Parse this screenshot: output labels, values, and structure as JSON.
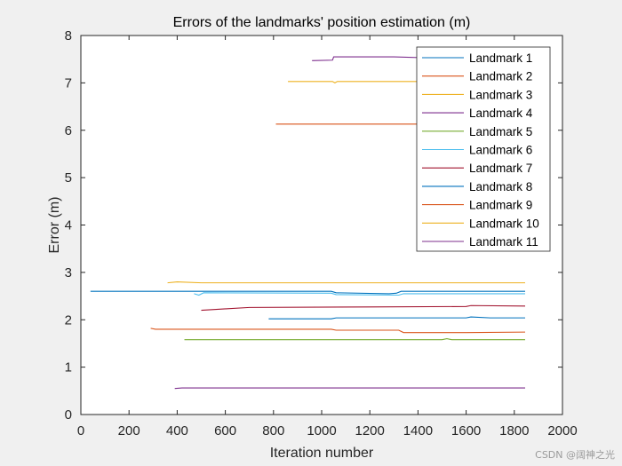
{
  "chart_data": {
    "type": "line",
    "title": "Errors of the landmarks' position estimation (m)",
    "xlabel": "Iteration number",
    "ylabel": "Error (m)",
    "xlim": [
      0,
      2000
    ],
    "ylim": [
      0,
      8
    ],
    "xticks": [
      0,
      200,
      400,
      600,
      800,
      1000,
      1200,
      1400,
      1600,
      1800,
      2000
    ],
    "yticks": [
      0,
      1,
      2,
      3,
      4,
      5,
      6,
      7,
      8
    ],
    "grid": false,
    "legend_position": "top-right",
    "series": [
      {
        "name": "Landmark 1",
        "color": "#0072BD",
        "points": [
          [
            40,
            2.6
          ],
          [
            1040,
            2.6
          ],
          [
            1060,
            2.57
          ],
          [
            1280,
            2.55
          ],
          [
            1310,
            2.56
          ],
          [
            1330,
            2.6
          ],
          [
            1845,
            2.6
          ]
        ]
      },
      {
        "name": "Landmark 2",
        "color": "#D95319",
        "points": [
          [
            810,
            6.13
          ],
          [
            1845,
            6.13
          ]
        ]
      },
      {
        "name": "Landmark 3",
        "color": "#EDB120",
        "points": [
          [
            860,
            7.03
          ],
          [
            1045,
            7.03
          ],
          [
            1055,
            7.0
          ],
          [
            1065,
            7.03
          ],
          [
            1845,
            7.03
          ]
        ]
      },
      {
        "name": "Landmark 4",
        "color": "#7E2F8E",
        "points": [
          [
            960,
            7.47
          ],
          [
            1045,
            7.48
          ],
          [
            1050,
            7.55
          ],
          [
            1300,
            7.55
          ],
          [
            1500,
            7.52
          ],
          [
            1845,
            7.52
          ]
        ]
      },
      {
        "name": "Landmark 5",
        "color": "#77AC30",
        "points": [
          [
            430,
            1.58
          ],
          [
            1500,
            1.58
          ],
          [
            1520,
            1.6
          ],
          [
            1540,
            1.58
          ],
          [
            1845,
            1.58
          ]
        ]
      },
      {
        "name": "Landmark 6",
        "color": "#4DBEEE",
        "points": [
          [
            470,
            2.55
          ],
          [
            490,
            2.52
          ],
          [
            510,
            2.57
          ],
          [
            1040,
            2.56
          ],
          [
            1060,
            2.53
          ],
          [
            1320,
            2.52
          ],
          [
            1340,
            2.55
          ],
          [
            1845,
            2.55
          ]
        ]
      },
      {
        "name": "Landmark 7",
        "color": "#A2142F",
        "points": [
          [
            500,
            2.2
          ],
          [
            600,
            2.23
          ],
          [
            700,
            2.26
          ],
          [
            1200,
            2.27
          ],
          [
            1600,
            2.28
          ],
          [
            1620,
            2.3
          ],
          [
            1845,
            2.29
          ]
        ]
      },
      {
        "name": "Landmark 8",
        "color": "#0072BD",
        "points": [
          [
            780,
            2.02
          ],
          [
            1040,
            2.02
          ],
          [
            1060,
            2.04
          ],
          [
            1600,
            2.04
          ],
          [
            1620,
            2.06
          ],
          [
            1700,
            2.04
          ],
          [
            1845,
            2.04
          ]
        ]
      },
      {
        "name": "Landmark 9",
        "color": "#D95319",
        "points": [
          [
            290,
            1.82
          ],
          [
            310,
            1.8
          ],
          [
            1040,
            1.8
          ],
          [
            1060,
            1.78
          ],
          [
            1320,
            1.78
          ],
          [
            1340,
            1.73
          ],
          [
            1600,
            1.73
          ],
          [
            1845,
            1.74
          ]
        ]
      },
      {
        "name": "Landmark 10",
        "color": "#EDB120",
        "points": [
          [
            360,
            2.78
          ],
          [
            400,
            2.8
          ],
          [
            500,
            2.78
          ],
          [
            1845,
            2.78
          ]
        ]
      },
      {
        "name": "Landmark 11",
        "color": "#7E2F8E",
        "points": [
          [
            390,
            0.55
          ],
          [
            420,
            0.56
          ],
          [
            1845,
            0.56
          ]
        ]
      }
    ]
  },
  "watermark": "CSDN @阔神之光"
}
